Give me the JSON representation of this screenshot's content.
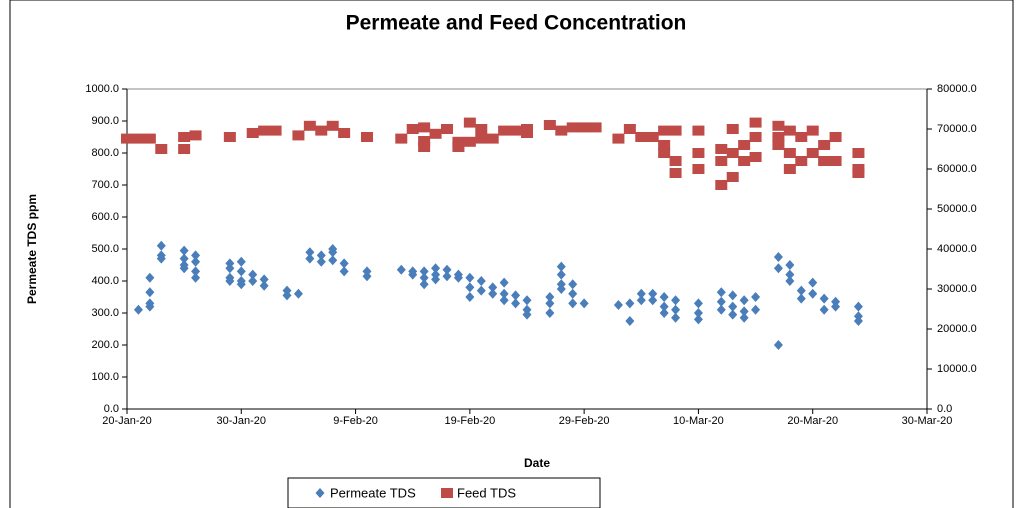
{
  "chart_data": {
    "type": "scatter",
    "title": "Permeate and Feed Concentration",
    "x_label": "Date",
    "y_label": "Permeate TDS ppm",
    "xlim": [
      "2020-01-20",
      "2020-03-30"
    ],
    "xticks": [
      {
        "value": "2020-01-20",
        "label": "20-Jan-20"
      },
      {
        "value": "2020-01-30",
        "label": "30-Jan-20"
      },
      {
        "value": "2020-02-09",
        "label": "9-Feb-20"
      },
      {
        "value": "2020-02-19",
        "label": "19-Feb-20"
      },
      {
        "value": "2020-02-29",
        "label": "29-Feb-20"
      },
      {
        "value": "2020-03-10",
        "label": "10-Mar-20"
      },
      {
        "value": "2020-03-20",
        "label": "20-Mar-20"
      },
      {
        "value": "2020-03-30",
        "label": "30-Mar-20"
      }
    ],
    "ylim": [
      0,
      1000
    ],
    "yticks": [
      {
        "value": 0,
        "label": "0.0"
      },
      {
        "value": 100,
        "label": "100.0"
      },
      {
        "value": 200,
        "label": "200.0"
      },
      {
        "value": 300,
        "label": "300.0"
      },
      {
        "value": 400,
        "label": "400.0"
      },
      {
        "value": 500,
        "label": "500.0"
      },
      {
        "value": 600,
        "label": "600.0"
      },
      {
        "value": 700,
        "label": "700.0"
      },
      {
        "value": 800,
        "label": "800.0"
      },
      {
        "value": 900,
        "label": "900.0"
      },
      {
        "value": 1000,
        "label": "1000.0"
      }
    ],
    "y2lim": [
      0,
      80000
    ],
    "y2ticks": [
      {
        "value": 0,
        "label": "0.0"
      },
      {
        "value": 10000,
        "label": "10000.0"
      },
      {
        "value": 20000,
        "label": "20000.0"
      },
      {
        "value": 30000,
        "label": "30000.0"
      },
      {
        "value": 40000,
        "label": "40000.0"
      },
      {
        "value": 50000,
        "label": "50000.0"
      },
      {
        "value": 60000,
        "label": "60000.0"
      },
      {
        "value": 70000,
        "label": "70000.0"
      },
      {
        "value": 80000,
        "label": "80000.0"
      }
    ],
    "legend": "bottom",
    "series": [
      {
        "name": "Permeate TDS",
        "color": "#4a7ebb",
        "marker": "diamond",
        "x": [
          "2020-01-21",
          "2020-01-22",
          "2020-01-22",
          "2020-01-22",
          "2020-01-22",
          "2020-01-23",
          "2020-01-23",
          "2020-01-23",
          "2020-01-25",
          "2020-01-25",
          "2020-01-25",
          "2020-01-25",
          "2020-01-26",
          "2020-01-26",
          "2020-01-26",
          "2020-01-26",
          "2020-01-29",
          "2020-01-29",
          "2020-01-29",
          "2020-01-29",
          "2020-01-30",
          "2020-01-30",
          "2020-01-30",
          "2020-01-30",
          "2020-01-31",
          "2020-01-31",
          "2020-02-01",
          "2020-02-01",
          "2020-02-03",
          "2020-02-03",
          "2020-02-04",
          "2020-02-05",
          "2020-02-05",
          "2020-02-06",
          "2020-02-06",
          "2020-02-07",
          "2020-02-07",
          "2020-02-07",
          "2020-02-08",
          "2020-02-08",
          "2020-02-10",
          "2020-02-10",
          "2020-02-13",
          "2020-02-14",
          "2020-02-14",
          "2020-02-15",
          "2020-02-15",
          "2020-02-15",
          "2020-02-16",
          "2020-02-16",
          "2020-02-16",
          "2020-02-17",
          "2020-02-17",
          "2020-02-18",
          "2020-02-18",
          "2020-02-19",
          "2020-02-19",
          "2020-02-19",
          "2020-02-20",
          "2020-02-20",
          "2020-02-21",
          "2020-02-21",
          "2020-02-22",
          "2020-02-22",
          "2020-02-22",
          "2020-02-23",
          "2020-02-23",
          "2020-02-24",
          "2020-02-24",
          "2020-02-24",
          "2020-02-26",
          "2020-02-26",
          "2020-02-26",
          "2020-02-27",
          "2020-02-27",
          "2020-02-27",
          "2020-02-27",
          "2020-02-28",
          "2020-02-28",
          "2020-02-28",
          "2020-02-29",
          "2020-03-03",
          "2020-03-04",
          "2020-03-04",
          "2020-03-05",
          "2020-03-05",
          "2020-03-06",
          "2020-03-06",
          "2020-03-07",
          "2020-03-07",
          "2020-03-07",
          "2020-03-08",
          "2020-03-08",
          "2020-03-08",
          "2020-03-10",
          "2020-03-10",
          "2020-03-10",
          "2020-03-12",
          "2020-03-12",
          "2020-03-12",
          "2020-03-13",
          "2020-03-13",
          "2020-03-13",
          "2020-03-14",
          "2020-03-14",
          "2020-03-14",
          "2020-03-15",
          "2020-03-15",
          "2020-03-17",
          "2020-03-17",
          "2020-03-17",
          "2020-03-18",
          "2020-03-18",
          "2020-03-18",
          "2020-03-19",
          "2020-03-19",
          "2020-03-20",
          "2020-03-20",
          "2020-03-21",
          "2020-03-21",
          "2020-03-22",
          "2020-03-22",
          "2020-03-24",
          "2020-03-24",
          "2020-03-24"
        ],
        "values": [
          310,
          330,
          320,
          365,
          410,
          510,
          480,
          470,
          495,
          470,
          450,
          440,
          480,
          460,
          430,
          410,
          455,
          440,
          410,
          400,
          460,
          430,
          400,
          390,
          420,
          400,
          405,
          385,
          370,
          355,
          360,
          490,
          470,
          480,
          460,
          500,
          490,
          465,
          455,
          430,
          430,
          415,
          435,
          430,
          420,
          430,
          410,
          390,
          440,
          420,
          405,
          435,
          415,
          420,
          410,
          410,
          380,
          350,
          400,
          370,
          380,
          360,
          395,
          360,
          340,
          355,
          330,
          340,
          310,
          295,
          350,
          330,
          300,
          445,
          420,
          390,
          375,
          390,
          360,
          330,
          330,
          325,
          330,
          275,
          360,
          340,
          360,
          340,
          350,
          320,
          300,
          340,
          310,
          285,
          330,
          300,
          280,
          365,
          335,
          310,
          355,
          320,
          295,
          340,
          305,
          285,
          350,
          310,
          475,
          440,
          200,
          450,
          420,
          400,
          370,
          345,
          395,
          360,
          345,
          310,
          335,
          320,
          320,
          290,
          275
        ]
      },
      {
        "name": "Feed TDS",
        "color": "#be4b48",
        "marker": "square",
        "axis": "y2",
        "x": [
          "2020-01-20",
          "2020-01-21",
          "2020-01-22",
          "2020-01-23",
          "2020-01-25",
          "2020-01-25",
          "2020-01-26",
          "2020-01-29",
          "2020-01-31",
          "2020-02-01",
          "2020-02-02",
          "2020-02-04",
          "2020-02-05",
          "2020-02-06",
          "2020-02-07",
          "2020-02-08",
          "2020-02-10",
          "2020-02-13",
          "2020-02-14",
          "2020-02-15",
          "2020-02-15",
          "2020-02-15",
          "2020-02-16",
          "2020-02-17",
          "2020-02-18",
          "2020-02-18",
          "2020-02-19",
          "2020-02-19",
          "2020-02-20",
          "2020-02-20",
          "2020-02-21",
          "2020-02-22",
          "2020-02-23",
          "2020-02-24",
          "2020-02-24",
          "2020-02-26",
          "2020-02-27",
          "2020-02-28",
          "2020-02-29",
          "2020-03-01",
          "2020-03-03",
          "2020-03-04",
          "2020-03-05",
          "2020-03-06",
          "2020-03-07",
          "2020-03-07",
          "2020-03-07",
          "2020-03-08",
          "2020-03-08",
          "2020-03-08",
          "2020-03-10",
          "2020-03-10",
          "2020-03-10",
          "2020-03-12",
          "2020-03-12",
          "2020-03-12",
          "2020-03-13",
          "2020-03-13",
          "2020-03-13",
          "2020-03-14",
          "2020-03-14",
          "2020-03-15",
          "2020-03-15",
          "2020-03-15",
          "2020-03-17",
          "2020-03-17",
          "2020-03-17",
          "2020-03-18",
          "2020-03-18",
          "2020-03-18",
          "2020-03-19",
          "2020-03-19",
          "2020-03-20",
          "2020-03-20",
          "2020-03-21",
          "2020-03-21",
          "2020-03-22",
          "2020-03-22",
          "2020-03-24",
          "2020-03-24",
          "2020-03-24"
        ],
        "values": [
          67600,
          67600,
          67600,
          65000,
          68000,
          65000,
          68400,
          68000,
          69000,
          69600,
          69600,
          68400,
          70800,
          69600,
          70800,
          69000,
          68000,
          67600,
          70000,
          70400,
          67000,
          65500,
          68800,
          70000,
          65500,
          66800,
          71600,
          66800,
          70000,
          67600,
          67600,
          69600,
          69600,
          70000,
          69000,
          71000,
          69600,
          70400,
          70400,
          70400,
          67600,
          70000,
          68000,
          68000,
          69600,
          66000,
          64000,
          69600,
          62000,
          59000,
          69600,
          64000,
          60000,
          65000,
          62000,
          56000,
          70000,
          64000,
          58000,
          66000,
          62000,
          71600,
          68000,
          63000,
          70800,
          68000,
          66000,
          69600,
          64000,
          60000,
          68000,
          62000,
          69600,
          64000,
          66000,
          62000,
          68000,
          62000,
          64000,
          60000,
          59000
        ]
      }
    ]
  }
}
